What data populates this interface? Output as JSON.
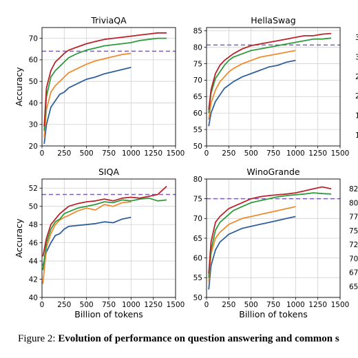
{
  "caption": {
    "prefix": "Figure 2:",
    "bold": "Evolution of performance on question answering and common s"
  },
  "colors": {
    "series": [
      "#2f5f9a",
      "#f08a2c",
      "#2e9a3c",
      "#b8232a"
    ],
    "reference": "#7a5fb3",
    "grid": "#d0d0d0"
  },
  "chart_data": [
    {
      "type": "line",
      "title": "TriviaQA",
      "xlabel": "",
      "ylabel": "Accuracy",
      "xlim": [
        0,
        1500
      ],
      "ylim": [
        20,
        75
      ],
      "xticks": [
        "0",
        "250",
        "500",
        "750",
        "1000",
        "1250",
        "1500"
      ],
      "yticks": [
        "20",
        "30",
        "40",
        "50",
        "60",
        "70"
      ],
      "grid": true,
      "reference_line": 64,
      "series": [
        {
          "x": [
            25,
            50,
            100,
            150,
            200,
            250,
            300,
            400,
            500,
            600,
            700,
            800,
            900,
            1000
          ],
          "y": [
            21,
            30,
            38,
            41,
            44,
            45,
            47,
            49,
            51,
            52,
            53.5,
            54.5,
            55.5,
            56.5
          ]
        },
        {
          "x": [
            25,
            50,
            100,
            150,
            200,
            250,
            300,
            400,
            500,
            600,
            700,
            800,
            900,
            1000
          ],
          "y": [
            24,
            37,
            45,
            48,
            50,
            52,
            54,
            56,
            58,
            59.5,
            60.5,
            61.5,
            62.5,
            63
          ]
        },
        {
          "x": [
            25,
            50,
            100,
            150,
            200,
            250,
            300,
            400,
            500,
            600,
            700,
            800,
            900,
            1000,
            1100,
            1200,
            1300,
            1400
          ],
          "y": [
            27,
            43,
            52,
            55,
            57,
            59,
            61,
            63,
            64.5,
            65.5,
            66.5,
            67,
            67.5,
            68,
            69,
            69.5,
            70,
            70
          ]
        },
        {
          "x": [
            25,
            50,
            100,
            150,
            200,
            250,
            300,
            400,
            500,
            600,
            700,
            800,
            900,
            1000,
            1100,
            1200,
            1300,
            1400
          ],
          "y": [
            29,
            47,
            55,
            59,
            61,
            63,
            64.5,
            66,
            67.5,
            68.5,
            69.5,
            70,
            70.5,
            71,
            71.5,
            72,
            72.5,
            72.5
          ]
        }
      ]
    },
    {
      "type": "line",
      "title": "HellaSwag",
      "xlabel": "",
      "ylabel": "",
      "xlim": [
        0,
        1500
      ],
      "ylim": [
        50,
        86
      ],
      "xticks": [
        "0",
        "250",
        "500",
        "750",
        "1000",
        "1250",
        "1500"
      ],
      "yticks": [
        "50",
        "55",
        "60",
        "65",
        "70",
        "75",
        "80",
        "85"
      ],
      "grid": true,
      "reference_line": 80.7,
      "series": [
        {
          "x": [
            25,
            50,
            100,
            150,
            200,
            250,
            300,
            400,
            500,
            600,
            700,
            800,
            900,
            1000
          ],
          "y": [
            56,
            60,
            63.5,
            65.5,
            67.5,
            68.5,
            69.5,
            71,
            72,
            73,
            74,
            74.5,
            75.5,
            76
          ]
        },
        {
          "x": [
            25,
            50,
            100,
            150,
            200,
            250,
            300,
            400,
            500,
            600,
            700,
            800,
            900,
            1000
          ],
          "y": [
            58,
            63,
            67,
            69.5,
            71,
            72.5,
            73.5,
            75,
            76,
            77,
            77.5,
            78,
            78.5,
            79
          ]
        },
        {
          "x": [
            25,
            50,
            100,
            150,
            200,
            250,
            300,
            400,
            500,
            600,
            700,
            800,
            900,
            1000,
            1100,
            1200,
            1300,
            1400
          ],
          "y": [
            60,
            66,
            70.5,
            72.5,
            74.5,
            76,
            77,
            78,
            79,
            79.5,
            80,
            80.5,
            81,
            81.5,
            82,
            82.5,
            82.5,
            82.8
          ]
        },
        {
          "x": [
            25,
            50,
            100,
            150,
            200,
            250,
            300,
            400,
            500,
            600,
            700,
            800,
            900,
            1000,
            1100,
            1200,
            1300,
            1400
          ],
          "y": [
            61,
            67,
            72,
            74.5,
            76,
            77,
            78,
            79.5,
            80.5,
            81,
            81.5,
            82,
            82.5,
            83,
            83.5,
            83.5,
            84,
            84.2
          ]
        }
      ]
    },
    {
      "type": "line",
      "title": "SIQA",
      "xlabel": "Billion of tokens",
      "ylabel": "Accuracy",
      "xlim": [
        0,
        1500
      ],
      "ylim": [
        40,
        53
      ],
      "xticks": [
        "0",
        "250",
        "500",
        "750",
        "1000",
        "1250",
        "1500"
      ],
      "yticks": [
        "40",
        "42",
        "44",
        "46",
        "48",
        "50",
        "52"
      ],
      "grid": true,
      "reference_line": 51.3,
      "series": [
        {
          "x": [
            10,
            50,
            100,
            150,
            200,
            250,
            300,
            400,
            500,
            600,
            700,
            800,
            900,
            1000
          ],
          "y": [
            43.5,
            45,
            46,
            46.8,
            47,
            47.5,
            47.8,
            47.9,
            48,
            48.1,
            48.3,
            48.2,
            48.6,
            48.8
          ]
        },
        {
          "x": [
            10,
            50,
            100,
            150,
            200,
            250,
            300,
            400,
            500,
            600,
            700,
            800,
            900,
            1000
          ],
          "y": [
            41.5,
            45.5,
            47,
            48,
            48.5,
            48.8,
            49,
            49.5,
            49.8,
            49.6,
            50.2,
            50,
            50.4,
            50.5
          ]
        },
        {
          "x": [
            10,
            50,
            100,
            150,
            200,
            250,
            300,
            400,
            500,
            600,
            700,
            800,
            900,
            1000,
            1100,
            1200,
            1300,
            1400
          ],
          "y": [
            43,
            46,
            47.5,
            48.3,
            48.6,
            49.2,
            49.4,
            49.8,
            50,
            50.2,
            50.5,
            50.4,
            50.7,
            50.6,
            50.8,
            50.9,
            50.6,
            50.7
          ]
        },
        {
          "x": [
            10,
            50,
            100,
            150,
            200,
            250,
            300,
            400,
            500,
            600,
            700,
            800,
            900,
            1000,
            1100,
            1200,
            1300,
            1400
          ],
          "y": [
            44.5,
            46.5,
            48,
            48.6,
            49.2,
            49.6,
            50,
            50.3,
            50.5,
            50.6,
            50.8,
            50.6,
            50.9,
            51,
            50.9,
            51.1,
            51.3,
            52.2
          ]
        }
      ]
    },
    {
      "type": "line",
      "title": "WinoGrande",
      "xlabel": "Billion of tokens",
      "ylabel": "",
      "xlim": [
        0,
        1500
      ],
      "ylim": [
        50,
        80
      ],
      "xticks": [
        "0",
        "250",
        "500",
        "750",
        "1000",
        "1250",
        "1500"
      ],
      "yticks": [
        "50",
        "55",
        "60",
        "65",
        "70",
        "75",
        "80"
      ],
      "grid": true,
      "reference_line": 75,
      "series": [
        {
          "x": [
            25,
            50,
            100,
            150,
            200,
            250,
            300,
            400,
            500,
            600,
            700,
            800,
            900,
            1000
          ],
          "y": [
            52,
            58,
            62,
            64,
            65,
            66,
            66.5,
            67.5,
            68,
            68.5,
            69,
            69.5,
            70,
            70.5
          ]
        },
        {
          "x": [
            25,
            50,
            100,
            150,
            200,
            250,
            300,
            400,
            500,
            600,
            700,
            800,
            900,
            1000
          ],
          "y": [
            54,
            61,
            65,
            66.5,
            67.5,
            68.5,
            69,
            70,
            70.5,
            71,
            71.5,
            72,
            72.5,
            73
          ]
        },
        {
          "x": [
            25,
            50,
            100,
            150,
            200,
            250,
            300,
            400,
            500,
            600,
            700,
            800,
            900,
            1000,
            1100,
            1200,
            1300,
            1400
          ],
          "y": [
            55,
            62,
            67,
            69,
            70,
            71,
            72,
            73,
            74,
            74.5,
            75,
            75.5,
            75.8,
            76,
            76.2,
            76.5,
            76.3,
            76.2
          ]
        },
        {
          "x": [
            25,
            50,
            100,
            150,
            200,
            250,
            300,
            400,
            500,
            600,
            700,
            800,
            900,
            1000,
            1100,
            1200,
            1300,
            1400
          ],
          "y": [
            56,
            64,
            69,
            70.5,
            71.5,
            72.5,
            73,
            74,
            75,
            75.5,
            75.8,
            76,
            76.2,
            76.5,
            77,
            77.5,
            78,
            77.5
          ]
        }
      ]
    }
  ],
  "offscreen_panels": [
    {
      "yticks": [
        "3",
        "3",
        "2",
        "2",
        "1",
        "1"
      ]
    },
    {
      "yticks": [
        "82",
        "80",
        "77",
        "75",
        "72",
        "70",
        "67",
        "65"
      ]
    }
  ]
}
